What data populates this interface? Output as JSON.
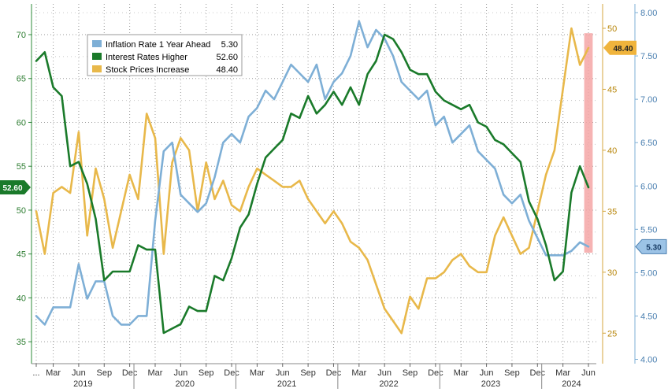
{
  "chart_data": {
    "type": "line",
    "x": [
      "2019-01",
      "2019-02",
      "2019-03",
      "2019-04",
      "2019-05",
      "2019-06",
      "2019-07",
      "2019-08",
      "2019-09",
      "2019-10",
      "2019-11",
      "2019-12",
      "2020-01",
      "2020-02",
      "2020-03",
      "2020-04",
      "2020-05",
      "2020-06",
      "2020-07",
      "2020-08",
      "2020-09",
      "2020-10",
      "2020-11",
      "2020-12",
      "2021-01",
      "2021-02",
      "2021-03",
      "2021-04",
      "2021-05",
      "2021-06",
      "2021-07",
      "2021-08",
      "2021-09",
      "2021-10",
      "2021-11",
      "2021-12",
      "2022-01",
      "2022-02",
      "2022-03",
      "2022-04",
      "2022-05",
      "2022-06",
      "2022-07",
      "2022-08",
      "2022-09",
      "2022-10",
      "2022-11",
      "2022-12",
      "2023-01",
      "2023-02",
      "2023-03",
      "2023-04",
      "2023-05",
      "2023-06",
      "2023-07",
      "2023-08",
      "2023-09",
      "2023-10",
      "2023-11",
      "2023-12",
      "2024-01",
      "2024-02",
      "2024-03",
      "2024-04",
      "2024-05",
      "2024-06"
    ],
    "x_ticks": [
      {
        "label": "...",
        "index": 0
      },
      {
        "label": "Mar",
        "index": 2
      },
      {
        "label": "Jun",
        "index": 5
      },
      {
        "label": "Sep",
        "index": 8
      },
      {
        "label": "Dec",
        "index": 11
      },
      {
        "label": "Mar",
        "index": 14
      },
      {
        "label": "Jun",
        "index": 17
      },
      {
        "label": "Sep",
        "index": 20
      },
      {
        "label": "Dec",
        "index": 23
      },
      {
        "label": "Mar",
        "index": 26
      },
      {
        "label": "Jun",
        "index": 29
      },
      {
        "label": "Sep",
        "index": 32
      },
      {
        "label": "Dec",
        "index": 35
      },
      {
        "label": "Mar",
        "index": 38
      },
      {
        "label": "Jun",
        "index": 41
      },
      {
        "label": "Sep",
        "index": 44
      },
      {
        "label": "Dec",
        "index": 47
      },
      {
        "label": "Mar",
        "index": 50
      },
      {
        "label": "Jun",
        "index": 53
      },
      {
        "label": "Sep",
        "index": 56
      },
      {
        "label": "Dec",
        "index": 59
      },
      {
        "label": "Mar",
        "index": 62
      },
      {
        "label": "Jun",
        "index": 65
      }
    ],
    "year_labels": [
      {
        "label": "2019",
        "index": 5.5
      },
      {
        "label": "2020",
        "index": 17.5
      },
      {
        "label": "2021",
        "index": 29.5
      },
      {
        "label": "2022",
        "index": 41.5
      },
      {
        "label": "2023",
        "index": 53.5
      },
      {
        "label": "2024",
        "index": 63
      }
    ],
    "y_left": {
      "min": 32.5,
      "max": 73.5,
      "ticks": [
        35,
        40,
        45,
        50,
        55,
        60,
        65,
        70
      ]
    },
    "y_right1": {
      "min": 22.5,
      "max": 52.0,
      "ticks": [
        25,
        30,
        35,
        40,
        45,
        50
      ]
    },
    "y_right2": {
      "min": 3.95,
      "max": 8.1,
      "ticks": [
        "4.00",
        "4.50",
        "5.00",
        "5.50",
        "6.00",
        "6.50",
        "7.00",
        "7.50",
        "8.00"
      ]
    },
    "grid": true,
    "legend_position": "top-left",
    "highlight_region": {
      "start_index": 64.5,
      "end_index": 65.5,
      "color": "#f4a6a6"
    },
    "series": [
      {
        "name": "Inflation Rate 1 Year Ahead",
        "legend_value": "5.30",
        "axis": "y_right2",
        "color": "#7eafd6",
        "end_tag": "5.30",
        "values": [
          4.5,
          4.4,
          4.6,
          4.6,
          4.6,
          5.1,
          4.7,
          4.9,
          4.9,
          4.5,
          4.4,
          4.4,
          4.5,
          4.5,
          5.6,
          6.4,
          6.5,
          5.9,
          5.8,
          5.7,
          5.8,
          6.1,
          6.5,
          6.6,
          6.5,
          6.8,
          6.9,
          7.1,
          7.0,
          7.2,
          7.4,
          7.3,
          7.2,
          7.4,
          7.0,
          7.2,
          7.3,
          7.5,
          7.9,
          7.6,
          7.8,
          7.7,
          7.5,
          7.2,
          7.1,
          7.0,
          7.1,
          6.7,
          6.8,
          6.5,
          6.6,
          6.7,
          6.4,
          6.3,
          6.2,
          5.9,
          5.8,
          5.9,
          5.6,
          5.4,
          5.2,
          5.2,
          5.2,
          5.25,
          5.35,
          5.3
        ]
      },
      {
        "name": "Interest Rates Higher",
        "legend_value": "52.60",
        "axis": "y_left",
        "color": "#1a7a2a",
        "end_tag": "52.60",
        "values": [
          67.0,
          68.0,
          64.0,
          63.0,
          55.0,
          55.5,
          53.0,
          49.0,
          42.0,
          43.0,
          43.0,
          43.0,
          46.0,
          45.5,
          45.5,
          36.0,
          36.5,
          37.0,
          39.0,
          38.5,
          38.5,
          42.5,
          42.0,
          44.5,
          48.0,
          49.5,
          53.0,
          56.0,
          57.0,
          58.0,
          61.0,
          60.5,
          63.0,
          61.0,
          62.0,
          63.5,
          62.0,
          64.0,
          62.0,
          65.5,
          67.0,
          70.0,
          69.5,
          68.0,
          66.0,
          65.5,
          65.5,
          63.5,
          62.5,
          62.0,
          61.5,
          62.0,
          60.0,
          59.5,
          58.0,
          57.5,
          56.5,
          55.5,
          51.0,
          49.0,
          46.0,
          42.0,
          43.0,
          52.0,
          55.0,
          52.6
        ]
      },
      {
        "name": "Stock Prices Increase",
        "legend_value": "48.40",
        "axis": "y_right1",
        "color": "#e8b84a",
        "end_tag": "48.40",
        "values": [
          35.0,
          31.5,
          36.5,
          37.0,
          36.5,
          41.5,
          33.0,
          38.5,
          36.0,
          32.0,
          35.0,
          38.0,
          36.0,
          43.0,
          41.0,
          31.5,
          39.0,
          41.0,
          40.0,
          35.0,
          39.0,
          36.0,
          37.5,
          35.5,
          35.0,
          37.0,
          38.5,
          38.0,
          37.5,
          37.0,
          37.0,
          37.5,
          36.0,
          35.0,
          34.0,
          35.0,
          34.0,
          32.5,
          32.0,
          31.0,
          29.0,
          27.0,
          26.0,
          25.0,
          28.0,
          27.0,
          29.5,
          29.5,
          30.0,
          31.0,
          31.5,
          30.5,
          30.0,
          30.0,
          33.0,
          34.5,
          33.0,
          31.5,
          32.0,
          35.0,
          38.0,
          40.0,
          45.0,
          50.0,
          47.0,
          48.4
        ]
      }
    ]
  }
}
